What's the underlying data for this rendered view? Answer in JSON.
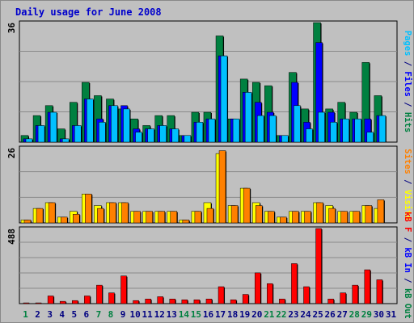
{
  "title": "Daily usage for June 2008",
  "colors": {
    "hits": "#008040",
    "files": "#0000ff",
    "pages": "#00c0ff",
    "visits": "#ffff00",
    "sites": "#ff8000",
    "kbytes": "#ff0000",
    "background": "#c0c0c0",
    "weekend_label": "#008040",
    "weekday_label": "#000080"
  },
  "chart_data": [
    {
      "type": "bar",
      "name": "hits-files-pages",
      "scale_label": "36",
      "axis_label": [
        {
          "text": "Pages",
          "color": "#00c0ff"
        },
        {
          "text": " / ",
          "color": "#000080"
        },
        {
          "text": "Files",
          "color": "#0000ff"
        },
        {
          "text": " / ",
          "color": "#000080"
        },
        {
          "text": "Hits",
          "color": "#008040"
        }
      ],
      "ylim": [
        0,
        36
      ],
      "categories": [
        "1",
        "2",
        "3",
        "4",
        "5",
        "6",
        "7",
        "8",
        "9",
        "10",
        "11",
        "12",
        "13",
        "14",
        "15",
        "16",
        "17",
        "18",
        "19",
        "20",
        "21",
        "22",
        "23",
        "24",
        "25",
        "26",
        "27",
        "28",
        "29",
        "30",
        "31"
      ],
      "series": [
        {
          "name": "Hits",
          "values": [
            2,
            8,
            11,
            4,
            12,
            18,
            14,
            13,
            10,
            7,
            5,
            8,
            8,
            2,
            9,
            9,
            32,
            7,
            19,
            18,
            17,
            2,
            21,
            10,
            36,
            10,
            12,
            9,
            24,
            14,
            0
          ]
        },
        {
          "name": "Files",
          "values": [
            1,
            5,
            9,
            1,
            5,
            13,
            7,
            11,
            11,
            4,
            4,
            5,
            4,
            2,
            6,
            7,
            26,
            7,
            15,
            12,
            9,
            2,
            18,
            6,
            30,
            9,
            7,
            7,
            7,
            8,
            0
          ]
        },
        {
          "name": "Pages",
          "values": [
            1,
            5,
            9,
            1,
            5,
            13,
            6,
            11,
            10,
            3,
            4,
            5,
            4,
            2,
            6,
            7,
            26,
            7,
            15,
            8,
            8,
            2,
            11,
            4,
            9,
            6,
            7,
            7,
            3,
            8,
            0
          ]
        }
      ]
    },
    {
      "type": "bar",
      "name": "visits-sites",
      "scale_label": "26",
      "axis_label": [
        {
          "text": "Sites",
          "color": "#ff8000"
        },
        {
          "text": " / ",
          "color": "#000080"
        },
        {
          "text": "Visits",
          "color": "#ffff00"
        }
      ],
      "ylim": [
        0,
        26
      ],
      "categories": [
        "1",
        "2",
        "3",
        "4",
        "5",
        "6",
        "7",
        "8",
        "9",
        "10",
        "11",
        "12",
        "13",
        "14",
        "15",
        "16",
        "17",
        "18",
        "19",
        "20",
        "21",
        "22",
        "23",
        "24",
        "25",
        "26",
        "27",
        "28",
        "29",
        "30",
        "31"
      ],
      "series": [
        {
          "name": "Visits",
          "values": [
            1,
            5,
            7,
            2,
            4,
            10,
            6,
            7,
            7,
            4,
            4,
            4,
            4,
            1,
            4,
            7,
            24,
            6,
            12,
            7,
            4,
            2,
            4,
            4,
            7,
            6,
            4,
            4,
            6,
            5,
            0
          ]
        },
        {
          "name": "Sites",
          "values": [
            1,
            5,
            7,
            2,
            3,
            10,
            5,
            7,
            7,
            4,
            4,
            4,
            4,
            1,
            4,
            5,
            25,
            6,
            12,
            6,
            4,
            2,
            4,
            4,
            7,
            5,
            4,
            4,
            6,
            8,
            0
          ]
        }
      ]
    },
    {
      "type": "bar",
      "name": "kbytes",
      "scale_label": "488",
      "axis_label": [
        {
          "text": "kB F",
          "color": "#ff0000"
        },
        {
          "text": " / ",
          "color": "#000080"
        },
        {
          "text": "kB In",
          "color": "#0000ff"
        },
        {
          "text": " / ",
          "color": "#000080"
        },
        {
          "text": "kB Out",
          "color": "#008040"
        }
      ],
      "ylim": [
        0,
        488
      ],
      "categories": [
        "1",
        "2",
        "3",
        "4",
        "5",
        "6",
        "7",
        "8",
        "9",
        "10",
        "11",
        "12",
        "13",
        "14",
        "15",
        "16",
        "17",
        "18",
        "19",
        "20",
        "21",
        "22",
        "23",
        "24",
        "25",
        "26",
        "27",
        "28",
        "29",
        "30",
        "31"
      ],
      "series": [
        {
          "name": "kB F",
          "values": [
            5,
            5,
            50,
            15,
            20,
            50,
            120,
            70,
            180,
            20,
            30,
            45,
            30,
            25,
            25,
            30,
            110,
            25,
            60,
            200,
            130,
            30,
            260,
            110,
            488,
            30,
            70,
            120,
            220,
            155,
            0
          ]
        }
      ]
    }
  ]
}
